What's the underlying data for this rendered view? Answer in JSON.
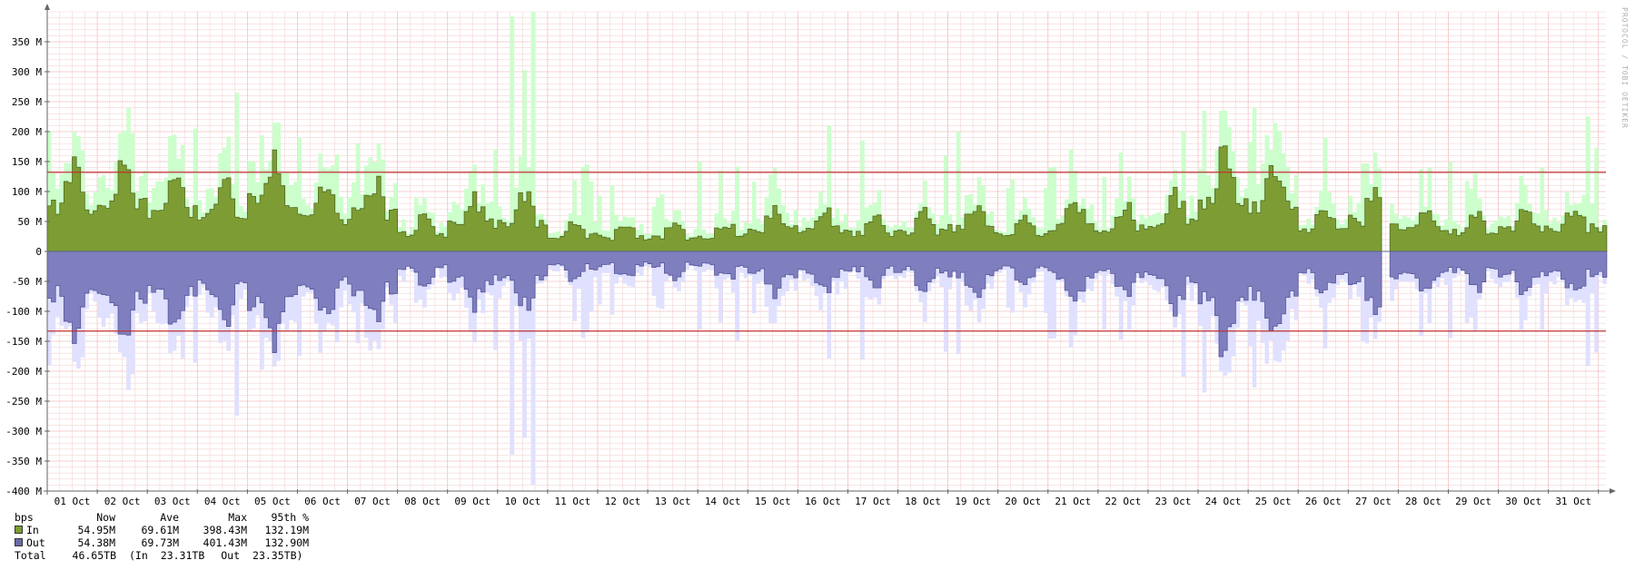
{
  "watermark": "PROTOCOL / TOBI OETIKER",
  "chart_data": {
    "type": "area",
    "y_ticks": [
      {
        "value": 350,
        "label": "350 M"
      },
      {
        "value": 300,
        "label": "300 M"
      },
      {
        "value": 250,
        "label": "250 M"
      },
      {
        "value": 200,
        "label": "200 M"
      },
      {
        "value": 150,
        "label": "150 M"
      },
      {
        "value": 100,
        "label": "100 M"
      },
      {
        "value": 50,
        "label": "50 M"
      },
      {
        "value": 0,
        "label": "0"
      },
      {
        "value": -50,
        "label": "-50 M"
      },
      {
        "value": -100,
        "label": "-100 M"
      },
      {
        "value": -150,
        "label": "-150 M"
      },
      {
        "value": -200,
        "label": "-200 M"
      },
      {
        "value": -250,
        "label": "-250 M"
      },
      {
        "value": -300,
        "label": "-300 M"
      },
      {
        "value": -350,
        "label": "-350 M"
      },
      {
        "value": -400,
        "label": "-400 M"
      }
    ],
    "ylim": [
      -400,
      400
    ],
    "x_labels": [
      "01 Oct",
      "02 Oct",
      "03 Oct",
      "04 Oct",
      "05 Oct",
      "06 Oct",
      "07 Oct",
      "08 Oct",
      "09 Oct",
      "10 Oct",
      "11 Oct",
      "12 Oct",
      "13 Oct",
      "14 Oct",
      "15 Oct",
      "16 Oct",
      "17 Oct",
      "18 Oct",
      "19 Oct",
      "20 Oct",
      "21 Oct",
      "22 Oct",
      "23 Oct",
      "24 Oct",
      "25 Oct",
      "26 Oct",
      "27 Oct",
      "28 Oct",
      "29 Oct",
      "30 Oct",
      "31 Oct"
    ],
    "x_range_days": [
      0,
      31.15
    ],
    "gap_day": [
      26.65,
      26.78
    ],
    "percentile_95": {
      "in": 132.19,
      "out": -132.9
    },
    "daily_avg": [
      110,
      120,
      105,
      90,
      125,
      85,
      95,
      45,
      70,
      75,
      40,
      35,
      35,
      40,
      55,
      55,
      45,
      50,
      60,
      45,
      65,
      60,
      75,
      135,
      110,
      55,
      80,
      55,
      50,
      55,
      60
    ],
    "daily_peak": [
      200,
      240,
      205,
      265,
      215,
      190,
      180,
      90,
      170,
      400,
      145,
      110,
      95,
      150,
      140,
      210,
      185,
      160,
      200,
      120,
      170,
      165,
      200,
      235,
      240,
      190,
      165,
      140,
      150,
      140,
      225
    ],
    "series": [
      {
        "name": "In",
        "sign": 1,
        "color": "#7d9d34",
        "peak_color": "#ccffcc"
      },
      {
        "name": "Out",
        "sign": -1,
        "color": "#7f7fbf",
        "peak_color": "#e0e0ff"
      }
    ]
  },
  "legend": {
    "header": {
      "unit": "bps",
      "now": "Now",
      "ave": "Ave",
      "max": "Max",
      "p95": "95th %"
    },
    "rows": [
      {
        "name": "In",
        "color": "#7d9d34",
        "now": "54.95M",
        "ave": "69.61M",
        "max": "398.43M",
        "p95": "132.19M"
      },
      {
        "name": "Out",
        "color": "#6a6aa8",
        "now": "54.38M",
        "ave": "69.73M",
        "max": "401.43M",
        "p95": "132.90M"
      }
    ],
    "total": {
      "label": "Total",
      "value": "46.65TB",
      "in_label": "(In",
      "in_value": "23.31TB",
      "out_label": "Out",
      "out_value": "23.35TB)"
    }
  }
}
